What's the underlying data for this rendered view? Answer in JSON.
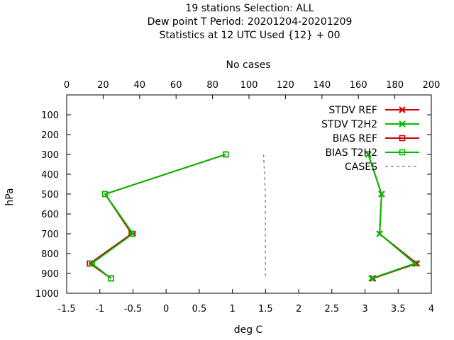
{
  "chart_data": {
    "type": "line",
    "title_lines": [
      "19 stations Selection: ALL",
      "Dew point T  Period: 20201204-20201209",
      "Statistics at 12 UTC  Used {12} + 00"
    ],
    "xlabel": "deg C",
    "ylabel": "hPa",
    "x2label": "No cases",
    "xlim": [
      -1.5,
      4
    ],
    "ylim": [
      1000,
      0
    ],
    "x2lim": [
      0,
      200
    ],
    "xticks": [
      "-1.5",
      "-1",
      "-0.5",
      "0",
      "0.5",
      "1",
      "1.5",
      "2",
      "2.5",
      "3",
      "3.5",
      "4"
    ],
    "yticks": [
      "100",
      "200",
      "300",
      "400",
      "500",
      "600",
      "700",
      "800",
      "900",
      "1000"
    ],
    "x2ticks": [
      "0",
      "20",
      "40",
      "60",
      "80",
      "100",
      "120",
      "140",
      "160",
      "180",
      "200"
    ],
    "grid": false,
    "legend_position": "top-right",
    "series": [
      {
        "name": "STDV REF",
        "color": "#cc0000",
        "marker": "x",
        "axis": "x",
        "points": [
          [
            3.05,
            300
          ],
          [
            3.25,
            500
          ],
          [
            3.22,
            700
          ],
          [
            3.78,
            850
          ],
          [
            3.12,
            925
          ]
        ]
      },
      {
        "name": "STDV T2H2",
        "color": "#00bb00",
        "marker": "x",
        "axis": "x",
        "points": [
          [
            3.05,
            300
          ],
          [
            3.25,
            500
          ],
          [
            3.22,
            700
          ],
          [
            3.75,
            850
          ],
          [
            3.1,
            925
          ]
        ]
      },
      {
        "name": "BIAS REF",
        "color": "#cc0000",
        "marker": "square",
        "axis": "x",
        "points": [
          [
            0.9,
            300
          ],
          [
            -0.92,
            500
          ],
          [
            -0.52,
            700
          ],
          [
            -1.15,
            850
          ],
          [
            -0.83,
            925
          ]
        ]
      },
      {
        "name": "BIAS T2H2",
        "color": "#00bb00",
        "marker": "square",
        "axis": "x",
        "points": [
          [
            0.9,
            300
          ],
          [
            -0.92,
            500
          ],
          [
            -0.5,
            700
          ],
          [
            -1.12,
            850
          ],
          [
            -0.83,
            925
          ]
        ]
      },
      {
        "name": "CASES",
        "color": "#888888",
        "marker": "none",
        "dash": true,
        "axis": "x2",
        "points": [
          [
            108,
            300
          ],
          [
            109,
            500
          ],
          [
            109,
            700
          ],
          [
            109,
            850
          ],
          [
            109,
            925
          ]
        ]
      }
    ]
  }
}
